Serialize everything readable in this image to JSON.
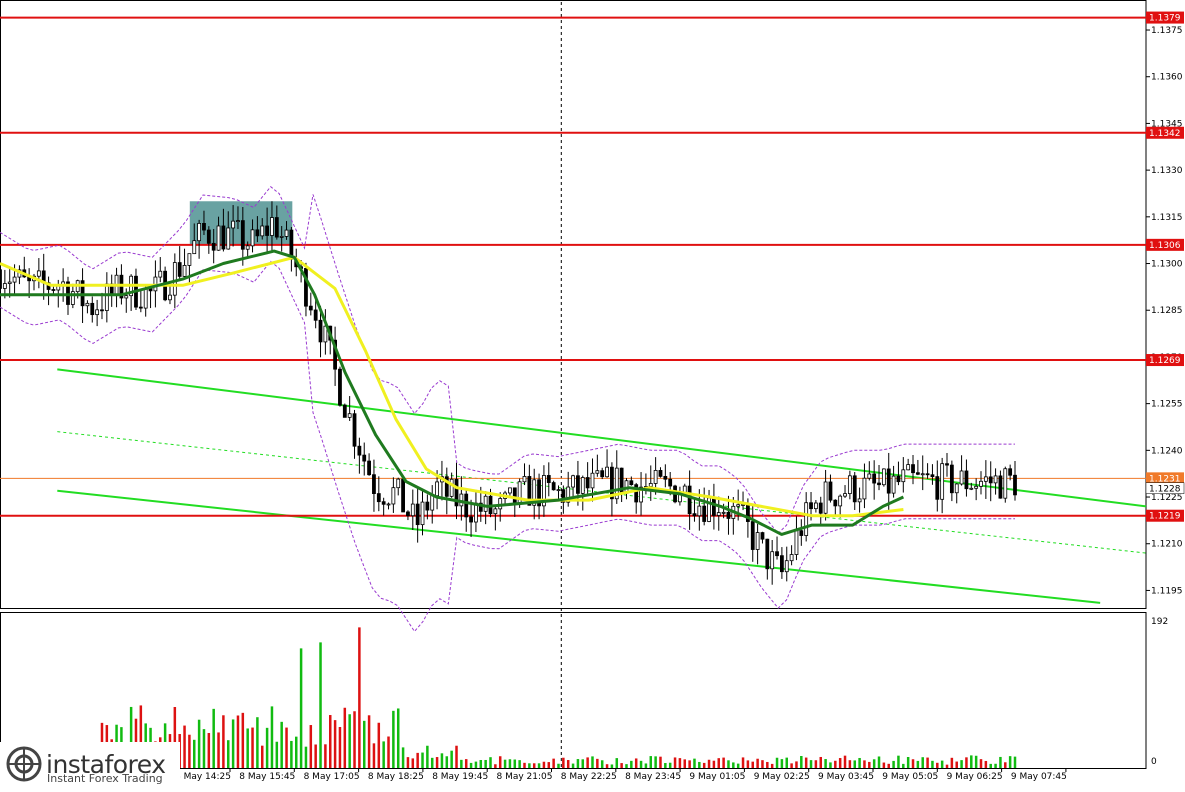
{
  "chart_data": {
    "type": "candlestick",
    "price_axis": {
      "range": [
        1.119,
        1.1384
      ],
      "tick_labels": [
        "1.1375",
        "1.1360",
        "1.1345",
        "1.1330",
        "1.1315",
        "1.1300",
        "1.1285",
        "1.1270",
        "1.1255",
        "1.1240",
        "1.1225",
        "1.1210",
        "1.1195"
      ],
      "ticks": [
        1.1375,
        1.136,
        1.1345,
        1.133,
        1.1315,
        1.13,
        1.1285,
        1.127,
        1.1255,
        1.124,
        1.1225,
        1.121,
        1.1195
      ]
    },
    "level_labels": [
      "1.1379",
      "1.1342",
      "1.1306",
      "1.1269",
      "1.1231",
      "1.1228",
      "1.1219"
    ],
    "levels": [
      {
        "label": "1.1379",
        "value": 1.1379,
        "color": "#e01010"
      },
      {
        "label": "1.1342",
        "value": 1.1342,
        "color": "#e01010"
      },
      {
        "label": "1.1306",
        "value": 1.1306,
        "color": "#e01010"
      },
      {
        "label": "1.1269",
        "value": 1.1269,
        "color": "#e01010"
      },
      {
        "label": "1.1219",
        "value": 1.1219,
        "color": "#e01010"
      }
    ],
    "current_price": {
      "label": "1.1231",
      "value": 1.1231,
      "color": "#f07a2a"
    },
    "last_price": {
      "label": "1.1228",
      "value": 1.1228
    },
    "time_labels": [
      "8 May 14:25",
      "8 May 15:45",
      "8 May 17:05",
      "8 May 18:25",
      "8 May 19:45",
      "8 May 21:05",
      "8 May 22:25",
      "8 May 23:45",
      "9 May 01:05",
      "9 May 02:25",
      "9 May 03:45",
      "9 May 05:05",
      "9 May 06:25",
      "9 May 07:45"
    ],
    "volume_axis": {
      "max_label": "192",
      "min_label": "0",
      "max": 192
    },
    "channel": {
      "color": "#22dd22",
      "upper": [
        {
          "x": 0.05,
          "y": 1.1266
        },
        {
          "x": 1.0,
          "y": 1.1222
        }
      ],
      "lower": [
        {
          "x": 0.05,
          "y": 1.1227
        },
        {
          "x": 0.96,
          "y": 1.1191
        }
      ],
      "mid": [
        {
          "x": 0.05,
          "y": 1.1246
        },
        {
          "x": 1.0,
          "y": 1.1207
        }
      ]
    },
    "price_path": [
      [
        0.0,
        1.1298
      ],
      [
        0.03,
        1.1292
      ],
      [
        0.06,
        1.1294
      ],
      [
        0.09,
        1.1286
      ],
      [
        0.12,
        1.1292
      ],
      [
        0.15,
        1.129
      ],
      [
        0.18,
        1.13
      ],
      [
        0.2,
        1.131
      ],
      [
        0.23,
        1.1309
      ],
      [
        0.25,
        1.1306
      ],
      [
        0.27,
        1.1314
      ],
      [
        0.29,
        1.13
      ],
      [
        0.31,
        1.1286
      ],
      [
        0.33,
        1.1265
      ],
      [
        0.35,
        1.1245
      ],
      [
        0.37,
        1.1228
      ],
      [
        0.39,
        1.1226
      ],
      [
        0.41,
        1.1216
      ],
      [
        0.43,
        1.1228
      ],
      [
        0.46,
        1.1222
      ],
      [
        0.49,
        1.122
      ],
      [
        0.52,
        1.1227
      ],
      [
        0.55,
        1.1226
      ],
      [
        0.58,
        1.1228
      ],
      [
        0.61,
        1.123
      ],
      [
        0.64,
        1.1228
      ],
      [
        0.67,
        1.1228
      ],
      [
        0.69,
        1.1223
      ],
      [
        0.71,
        1.1223
      ],
      [
        0.73,
        1.1218
      ],
      [
        0.75,
        1.1208
      ],
      [
        0.77,
        1.12
      ],
      [
        0.79,
        1.1216
      ],
      [
        0.81,
        1.1225
      ],
      [
        0.84,
        1.1228
      ],
      [
        0.87,
        1.1228
      ],
      [
        0.89,
        1.123
      ]
    ],
    "ma_fast": {
      "color": "#1f7a1f",
      "points": [
        [
          0.0,
          1.129
        ],
        [
          0.06,
          1.129
        ],
        [
          0.12,
          1.129
        ],
        [
          0.18,
          1.1295
        ],
        [
          0.22,
          1.13
        ],
        [
          0.27,
          1.1304
        ],
        [
          0.29,
          1.1302
        ],
        [
          0.31,
          1.129
        ],
        [
          0.34,
          1.1265
        ],
        [
          0.37,
          1.1245
        ],
        [
          0.4,
          1.123
        ],
        [
          0.43,
          1.1225
        ],
        [
          0.48,
          1.1222
        ],
        [
          0.55,
          1.1224
        ],
        [
          0.62,
          1.1228
        ],
        [
          0.67,
          1.1226
        ],
        [
          0.71,
          1.1222
        ],
        [
          0.74,
          1.1218
        ],
        [
          0.77,
          1.1213
        ],
        [
          0.8,
          1.1216
        ],
        [
          0.84,
          1.1216
        ],
        [
          0.87,
          1.1222
        ],
        [
          0.89,
          1.1225
        ]
      ]
    },
    "ma_slow": {
      "color": "#f0f020",
      "points": [
        [
          0.0,
          1.13
        ],
        [
          0.05,
          1.1293
        ],
        [
          0.12,
          1.1293
        ],
        [
          0.18,
          1.1293
        ],
        [
          0.23,
          1.1297
        ],
        [
          0.29,
          1.1302
        ],
        [
          0.33,
          1.1292
        ],
        [
          0.36,
          1.1272
        ],
        [
          0.39,
          1.125
        ],
        [
          0.42,
          1.1234
        ],
        [
          0.45,
          1.1228
        ],
        [
          0.52,
          1.1224
        ],
        [
          0.58,
          1.1224
        ],
        [
          0.64,
          1.1228
        ],
        [
          0.7,
          1.1225
        ],
        [
          0.75,
          1.1222
        ],
        [
          0.8,
          1.1219
        ],
        [
          0.84,
          1.1219
        ],
        [
          0.89,
          1.1221
        ]
      ]
    },
    "band_color": "#9a3bd0",
    "highlight_zone": {
      "x0": 0.187,
      "x1": 0.288,
      "y0": 1.1306,
      "y1": 1.132,
      "color": "#2a7a7a"
    },
    "cursor_line": {
      "x": 0.553
    }
  },
  "branding": {
    "name": "instaforex",
    "tagline": "Instant Forex Trading"
  }
}
